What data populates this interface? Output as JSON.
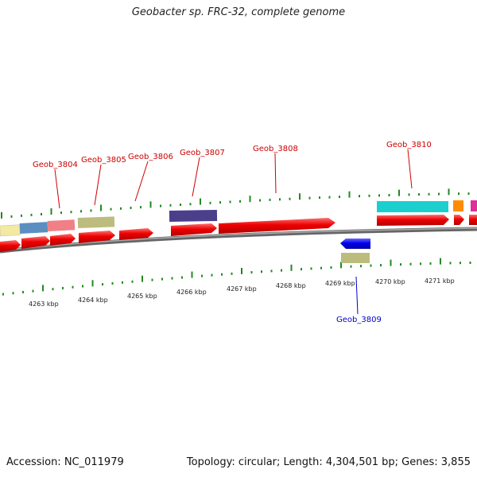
{
  "title": "Geobacter sp. FRC-32, complete genome",
  "footer": {
    "accession": "Accession: NC_011979",
    "summary": "Topology: circular; Length: 4,304,501 bp; Genes: 3,855"
  },
  "ticks": [
    "4263 kbp",
    "4264 kbp",
    "4265 kbp",
    "4266 kbp",
    "4267 kbp",
    "4268 kbp",
    "4269 kbp",
    "4270 kbp",
    "4271 kbp"
  ],
  "labels": [
    {
      "text": "Geob_3804",
      "color": "#cc0000"
    },
    {
      "text": "Geob_3805",
      "color": "#cc0000"
    },
    {
      "text": "Geob_3806",
      "color": "#cc0000"
    },
    {
      "text": "Geob_3807",
      "color": "#cc0000"
    },
    {
      "text": "Geob_3808",
      "color": "#cc0000"
    },
    {
      "text": "Geob_3810",
      "color": "#cc0000"
    },
    {
      "text": "Geob_3809",
      "color": "#0000cc"
    }
  ],
  "colors": {
    "forward_gene": "#ee0000",
    "reverse_gene": "#0000ee",
    "backbone": "#888888",
    "gc_ticks": "#228822"
  }
}
